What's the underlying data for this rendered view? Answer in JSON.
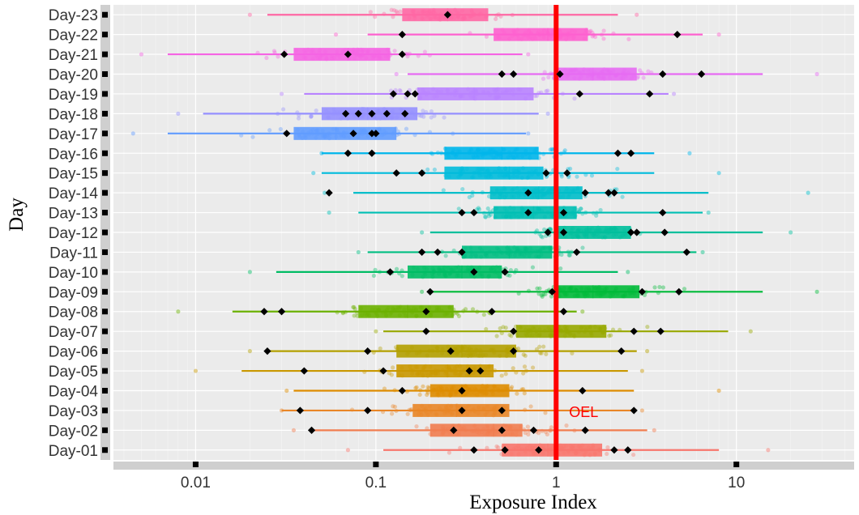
{
  "chart_data": {
    "type": "boxplot",
    "title": "",
    "xlabel": "Exposure Index",
    "ylabel": "Day",
    "x_scale": "log10",
    "xlim": [
      0.0035,
      45
    ],
    "x_ticks": [
      0.01,
      0.1,
      1,
      10
    ],
    "x_tick_labels": [
      "0.01",
      "0.1",
      "1",
      "10"
    ],
    "reference_line": {
      "x": 1,
      "label": "OEL",
      "color": "#ff0000"
    },
    "grid": true,
    "legend": "none",
    "categories": [
      "Day-01",
      "Day-02",
      "Day-03",
      "Day-04",
      "Day-05",
      "Day-06",
      "Day-07",
      "Day-08",
      "Day-09",
      "Day-10",
      "Day-11",
      "Day-12",
      "Day-13",
      "Day-14",
      "Day-15",
      "Day-16",
      "Day-17",
      "Day-18",
      "Day-19",
      "Day-20",
      "Day-21",
      "Day-22",
      "Day-23"
    ],
    "series": [
      {
        "category": "Day-01",
        "color": "#F8766D",
        "whisker_low": 0.11,
        "q1": 0.5,
        "median": 0.9,
        "q3": 1.8,
        "whisker_high": 8,
        "markers": [
          0.35,
          0.52,
          0.8,
          2.1,
          2.5
        ],
        "point_range": [
          0.07,
          15
        ]
      },
      {
        "category": "Day-02",
        "color": "#F17D50",
        "whisker_low": 0.045,
        "q1": 0.2,
        "median": 0.45,
        "q3": 0.65,
        "whisker_high": 3.2,
        "markers": [
          0.044,
          0.27,
          0.5,
          0.75,
          1.45
        ],
        "point_range": [
          0.035,
          3.5
        ]
      },
      {
        "category": "Day-03",
        "color": "#E98627",
        "whisker_low": 0.03,
        "q1": 0.16,
        "median": 0.28,
        "q3": 0.55,
        "whisker_high": 2.8,
        "markers": [
          0.038,
          0.09,
          0.3,
          0.5,
          2.7
        ],
        "point_range": [
          0.03,
          3
        ]
      },
      {
        "category": "Day-04",
        "color": "#DE8C00",
        "whisker_low": 0.035,
        "q1": 0.2,
        "median": 0.3,
        "q3": 0.55,
        "whisker_high": 2.7,
        "markers": [
          0.14,
          0.3,
          1.4
        ],
        "point_range": [
          0.032,
          8
        ]
      },
      {
        "category": "Day-05",
        "color": "#C99800",
        "whisker_low": 0.018,
        "q1": 0.13,
        "median": 0.25,
        "q3": 0.45,
        "whisker_high": 2.5,
        "markers": [
          0.04,
          0.11,
          0.33,
          0.38
        ],
        "point_range": [
          0.01,
          3
        ]
      },
      {
        "category": "Day-06",
        "color": "#B3A000",
        "whisker_low": 0.025,
        "q1": 0.13,
        "median": 0.3,
        "q3": 0.6,
        "whisker_high": 2.8,
        "markers": [
          0.025,
          0.09,
          0.26,
          0.58,
          2.3
        ],
        "point_range": [
          0.02,
          3.2
        ]
      },
      {
        "category": "Day-07",
        "color": "#97A800",
        "whisker_low": 0.11,
        "q1": 0.6,
        "median": 1.0,
        "q3": 1.9,
        "whisker_high": 9,
        "markers": [
          0.19,
          0.58,
          2.7,
          3.8
        ],
        "point_range": [
          0.1,
          12
        ]
      },
      {
        "category": "Day-08",
        "color": "#6BB100",
        "whisker_low": 0.016,
        "q1": 0.08,
        "median": 0.15,
        "q3": 0.27,
        "whisker_high": 1.3,
        "markers": [
          0.024,
          0.03,
          0.19,
          0.44,
          1.1
        ],
        "point_range": [
          0.008,
          1.4
        ]
      },
      {
        "category": "Day-09",
        "color": "#00BA38",
        "whisker_low": 0.2,
        "q1": 1.0,
        "median": 1.6,
        "q3": 2.9,
        "whisker_high": 14,
        "markers": [
          0.2,
          0.95,
          3.0,
          4.8
        ],
        "point_range": [
          0.18,
          28
        ]
      },
      {
        "category": "Day-10",
        "color": "#00BC64",
        "whisker_low": 0.028,
        "q1": 0.15,
        "median": 0.3,
        "q3": 0.5,
        "whisker_high": 2.2,
        "markers": [
          0.12,
          0.35,
          0.52
        ],
        "point_range": [
          0.02,
          2.5
        ]
      },
      {
        "category": "Day-11",
        "color": "#00BE82",
        "whisker_low": 0.09,
        "q1": 0.3,
        "median": 0.55,
        "q3": 0.95,
        "whisker_high": 6,
        "markers": [
          0.18,
          0.22,
          0.3,
          1.3,
          5.3
        ],
        "point_range": [
          0.08,
          6.5
        ]
      },
      {
        "category": "Day-12",
        "color": "#00BF9C",
        "whisker_low": 0.2,
        "q1": 1.0,
        "median": 1.5,
        "q3": 2.6,
        "whisker_high": 14,
        "markers": [
          0.9,
          1.1,
          2.6,
          2.8,
          4.0
        ],
        "point_range": [
          0.18,
          20
        ]
      },
      {
        "category": "Day-13",
        "color": "#00BFB4",
        "whisker_low": 0.08,
        "q1": 0.45,
        "median": 0.75,
        "q3": 1.3,
        "whisker_high": 6.5,
        "markers": [
          0.3,
          0.35,
          0.7,
          1.1,
          3.9
        ],
        "point_range": [
          0.055,
          7
        ]
      },
      {
        "category": "Day-14",
        "color": "#00BECA",
        "whisker_low": 0.075,
        "q1": 0.43,
        "median": 0.8,
        "q3": 1.4,
        "whisker_high": 7,
        "markers": [
          0.055,
          0.7,
          1.45,
          1.95,
          2.1
        ],
        "point_range": [
          0.052,
          25
        ]
      },
      {
        "category": "Day-15",
        "color": "#00BBDC",
        "whisker_low": 0.05,
        "q1": 0.24,
        "median": 0.55,
        "q3": 0.85,
        "whisker_high": 3.5,
        "markers": [
          0.13,
          0.18,
          0.88,
          1.15
        ],
        "point_range": [
          0.045,
          8
        ]
      },
      {
        "category": "Day-16",
        "color": "#00B6EB",
        "whisker_low": 0.05,
        "q1": 0.24,
        "median": 0.5,
        "q3": 0.8,
        "whisker_high": 3.5,
        "markers": [
          0.07,
          0.095,
          2.2,
          2.6
        ],
        "point_range": [
          0.05,
          5.5
        ]
      },
      {
        "category": "Day-17",
        "color": "#619CFF",
        "whisker_low": 0.007,
        "q1": 0.035,
        "median": 0.06,
        "q3": 0.13,
        "whisker_high": 0.68,
        "markers": [
          0.032,
          0.075,
          0.095,
          0.1
        ],
        "point_range": [
          0.0045,
          0.7
        ]
      },
      {
        "category": "Day-18",
        "color": "#9590FF",
        "whisker_low": 0.011,
        "q1": 0.05,
        "median": 0.09,
        "q3": 0.17,
        "whisker_high": 0.8,
        "markers": [
          0.068,
          0.08,
          0.095,
          0.115,
          0.145
        ],
        "point_range": [
          0.008,
          0.9
        ]
      },
      {
        "category": "Day-19",
        "color": "#B983FF",
        "whisker_low": 0.04,
        "q1": 0.17,
        "median": 0.35,
        "q3": 0.75,
        "whisker_high": 4.2,
        "markers": [
          0.125,
          0.15,
          0.165,
          1.35,
          3.3
        ],
        "point_range": [
          0.03,
          4.5
        ]
      },
      {
        "category": "Day-20",
        "color": "#E76BF3",
        "whisker_low": 0.15,
        "q1": 1.0,
        "median": 1.6,
        "q3": 2.8,
        "whisker_high": 14,
        "markers": [
          0.5,
          0.58,
          1.05,
          3.9,
          6.4
        ],
        "point_range": [
          0.13,
          28
        ]
      },
      {
        "category": "Day-21",
        "color": "#F564E3",
        "whisker_low": 0.007,
        "q1": 0.035,
        "median": 0.07,
        "q3": 0.12,
        "whisker_high": 0.65,
        "markers": [
          0.031,
          0.07,
          0.14
        ],
        "point_range": [
          0.005,
          0.7
        ]
      },
      {
        "category": "Day-22",
        "color": "#FE61CF",
        "whisker_low": 0.09,
        "q1": 0.45,
        "median": 0.9,
        "q3": 1.5,
        "whisker_high": 6.5,
        "markers": [
          0.14,
          4.7
        ],
        "point_range": [
          0.06,
          8
        ]
      },
      {
        "category": "Day-23",
        "color": "#FF67A4",
        "whisker_low": 0.025,
        "q1": 0.14,
        "median": 0.25,
        "q3": 0.42,
        "whisker_high": 2.2,
        "markers": [
          0.25
        ],
        "point_range": [
          0.02,
          2.8
        ]
      }
    ]
  }
}
